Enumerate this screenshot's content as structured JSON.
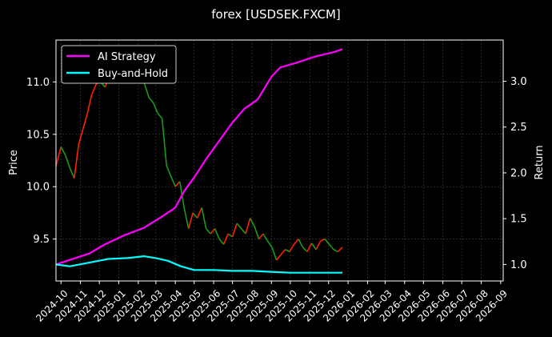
{
  "chart_data": {
    "type": "line",
    "title": "forex [USDSEK.FXCM]",
    "ylabel_left": "Price",
    "ylabel_right": "Return",
    "grid": true,
    "legend_position": "upper-left",
    "x_tick_labels": [
      "2024-10",
      "2024-11",
      "2024-12",
      "2025-01",
      "2025-02",
      "2025-03",
      "2025-04",
      "2025-05",
      "2025-06",
      "2025-07",
      "2025-08",
      "2025-09",
      "2025-10",
      "2025-11",
      "2025-12",
      "2026-01",
      "2026-02",
      "2026-03",
      "2026-04",
      "2026-05",
      "2026-06",
      "2026-07",
      "2026-08",
      "2026-09"
    ],
    "xlim": [
      "2024-09-23",
      "2026-09-05"
    ],
    "left_axis": {
      "ylim": [
        9.1,
        11.4
      ],
      "ticks": [
        "9.5",
        "10.0",
        "10.5",
        "11.0"
      ]
    },
    "right_axis": {
      "ylim": [
        0.82,
        3.45
      ],
      "ticks": [
        "1.0",
        "1.5",
        "2.0",
        "2.5",
        "3.0"
      ]
    },
    "price_series": {
      "name": "",
      "up_color": "#ff2000",
      "down_color": "#1a9a1a",
      "points": [
        [
          "2024-09-23",
          10.2
        ],
        [
          "2024-10-01",
          10.38
        ],
        [
          "2024-10-08",
          10.3
        ],
        [
          "2024-10-15",
          10.18
        ],
        [
          "2024-10-22",
          10.08
        ],
        [
          "2024-10-29",
          10.4
        ],
        [
          "2024-11-05",
          10.55
        ],
        [
          "2024-11-12",
          10.7
        ],
        [
          "2024-11-19",
          10.88
        ],
        [
          "2024-11-26",
          10.98
        ],
        [
          "2024-12-03",
          11.0
        ],
        [
          "2024-12-10",
          10.95
        ],
        [
          "2024-12-17",
          11.05
        ],
        [
          "2024-12-24",
          11.1
        ],
        [
          "2024-12-31",
          11.05
        ],
        [
          "2025-01-07",
          11.15
        ],
        [
          "2025-01-14",
          11.25
        ],
        [
          "2025-01-21",
          11.05
        ],
        [
          "2025-01-28",
          11.02
        ],
        [
          "2025-02-04",
          11.1
        ],
        [
          "2025-02-11",
          10.98
        ],
        [
          "2025-02-18",
          10.85
        ],
        [
          "2025-02-25",
          10.8
        ],
        [
          "2025-03-04",
          10.7
        ],
        [
          "2025-03-11",
          10.65
        ],
        [
          "2025-03-18",
          10.2
        ],
        [
          "2025-03-25",
          10.1
        ],
        [
          "2025-04-01",
          10.0
        ],
        [
          "2025-04-08",
          10.05
        ],
        [
          "2025-04-15",
          9.8
        ],
        [
          "2025-04-22",
          9.6
        ],
        [
          "2025-04-29",
          9.75
        ],
        [
          "2025-05-06",
          9.7
        ],
        [
          "2025-05-13",
          9.8
        ],
        [
          "2025-05-20",
          9.6
        ],
        [
          "2025-05-27",
          9.55
        ],
        [
          "2025-06-03",
          9.6
        ],
        [
          "2025-06-10",
          9.5
        ],
        [
          "2025-06-17",
          9.45
        ],
        [
          "2025-06-24",
          9.55
        ],
        [
          "2025-07-01",
          9.52
        ],
        [
          "2025-07-08",
          9.65
        ],
        [
          "2025-07-15",
          9.6
        ],
        [
          "2025-07-22",
          9.55
        ],
        [
          "2025-07-29",
          9.7
        ],
        [
          "2025-08-05",
          9.62
        ],
        [
          "2025-08-12",
          9.5
        ],
        [
          "2025-08-19",
          9.55
        ],
        [
          "2025-08-26",
          9.48
        ],
        [
          "2025-09-02",
          9.42
        ],
        [
          "2025-09-09",
          9.3
        ],
        [
          "2025-09-16",
          9.35
        ],
        [
          "2025-09-23",
          9.4
        ],
        [
          "2025-09-30",
          9.38
        ],
        [
          "2025-10-07",
          9.45
        ],
        [
          "2025-10-14",
          9.5
        ],
        [
          "2025-10-21",
          9.42
        ],
        [
          "2025-10-28",
          9.38
        ],
        [
          "2025-11-04",
          9.46
        ],
        [
          "2025-11-11",
          9.4
        ],
        [
          "2025-11-18",
          9.48
        ],
        [
          "2025-11-25",
          9.5
        ],
        [
          "2025-12-02",
          9.45
        ],
        [
          "2025-12-09",
          9.4
        ],
        [
          "2025-12-16",
          9.38
        ],
        [
          "2025-12-23",
          9.42
        ]
      ]
    },
    "series": [
      {
        "name": "AI Strategy",
        "color": "#ff00ff",
        "axis": "right",
        "points": [
          [
            "2024-09-23",
            1.0
          ],
          [
            "2024-10-15",
            1.05
          ],
          [
            "2024-11-15",
            1.12
          ],
          [
            "2024-12-10",
            1.22
          ],
          [
            "2025-01-10",
            1.32
          ],
          [
            "2025-02-10",
            1.4
          ],
          [
            "2025-03-10",
            1.52
          ],
          [
            "2025-04-01",
            1.62
          ],
          [
            "2025-04-15",
            1.8
          ],
          [
            "2025-05-01",
            1.95
          ],
          [
            "2025-05-20",
            2.15
          ],
          [
            "2025-06-10",
            2.35
          ],
          [
            "2025-07-01",
            2.55
          ],
          [
            "2025-07-20",
            2.7
          ],
          [
            "2025-08-10",
            2.8
          ],
          [
            "2025-09-01",
            3.05
          ],
          [
            "2025-09-15",
            3.15
          ],
          [
            "2025-10-10",
            3.2
          ],
          [
            "2025-11-10",
            3.27
          ],
          [
            "2025-12-10",
            3.32
          ],
          [
            "2025-12-23",
            3.35
          ]
        ]
      },
      {
        "name": "Buy-and-Hold",
        "color": "#00ffff",
        "axis": "right",
        "points": [
          [
            "2024-09-23",
            1.0
          ],
          [
            "2024-10-15",
            0.98
          ],
          [
            "2024-11-15",
            1.02
          ],
          [
            "2024-12-15",
            1.06
          ],
          [
            "2025-01-15",
            1.07
          ],
          [
            "2025-02-10",
            1.09
          ],
          [
            "2025-03-01",
            1.07
          ],
          [
            "2025-03-20",
            1.04
          ],
          [
            "2025-04-10",
            0.98
          ],
          [
            "2025-05-01",
            0.94
          ],
          [
            "2025-06-01",
            0.94
          ],
          [
            "2025-07-01",
            0.93
          ],
          [
            "2025-08-01",
            0.93
          ],
          [
            "2025-09-01",
            0.92
          ],
          [
            "2025-10-01",
            0.91
          ],
          [
            "2025-11-01",
            0.91
          ],
          [
            "2025-12-01",
            0.91
          ],
          [
            "2025-12-23",
            0.91
          ]
        ]
      }
    ]
  }
}
